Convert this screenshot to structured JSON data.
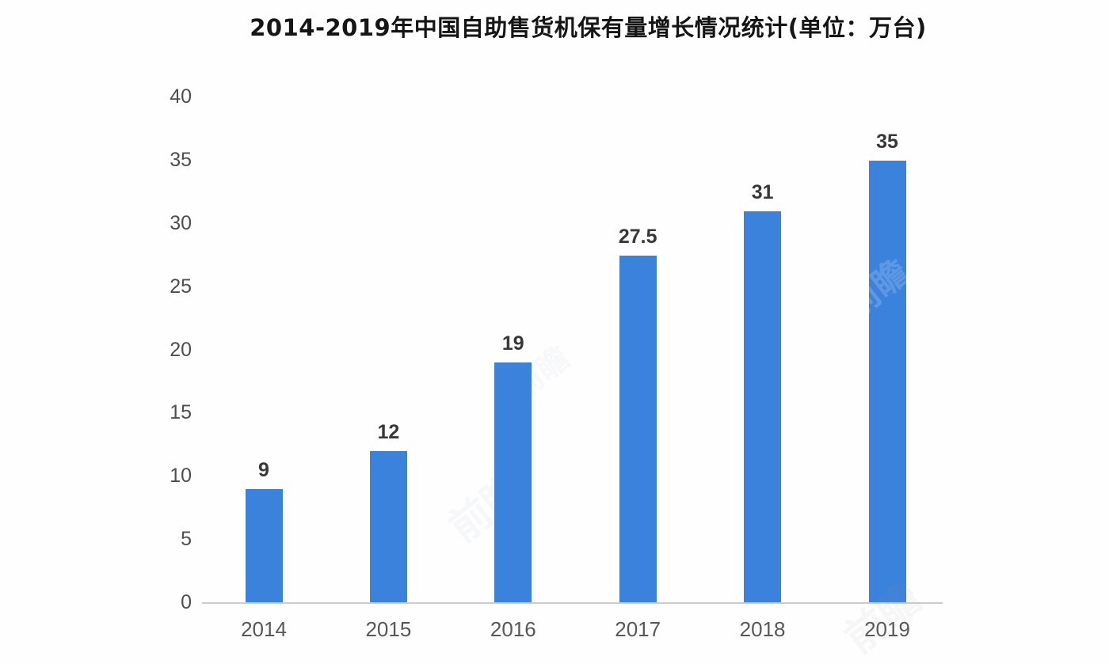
{
  "chart_data": {
    "type": "bar",
    "title": "2014-2019年中国自助售货机保有量增长情况统计(单位：万台)",
    "categories": [
      "2014",
      "2015",
      "2016",
      "2017",
      "2018",
      "2019"
    ],
    "values": [
      9,
      12,
      19,
      27.5,
      31,
      35
    ],
    "value_labels": [
      "9",
      "12",
      "19",
      "27.5",
      "31",
      "35"
    ],
    "xlabel": "",
    "ylabel": "",
    "ylim": [
      0,
      40
    ],
    "yticks": [
      0,
      5,
      10,
      15,
      20,
      25,
      30,
      35,
      40
    ],
    "grid": false,
    "legend": "none",
    "bar_color": "#3b82dd",
    "axis_line_color": "#cccccc",
    "tick_label_color": "#4f4f4f",
    "value_label_color": "#383838"
  },
  "watermark": {
    "text": "前瞻"
  }
}
